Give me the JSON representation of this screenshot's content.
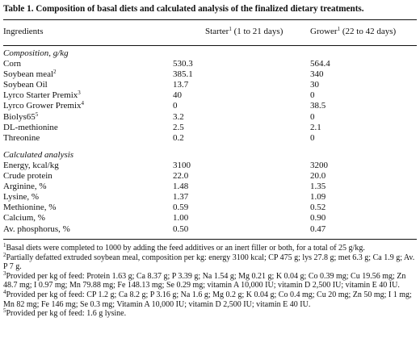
{
  "title": "Table 1. Composition of basal diets and calculated analysis of the finalized dietary treatments.",
  "header": {
    "ingredients": "Ingredients",
    "starter": "Starter",
    "starter_sup": "1",
    "starter_days": " (1 to 21 days)",
    "grower": "Grower",
    "grower_sup": "1",
    "grower_days": " (22 to 42 days)"
  },
  "composition": {
    "heading": "Composition, g/kg",
    "rows": [
      {
        "name": "Corn",
        "sup": "",
        "starter": "530.3",
        "grower": "564.4"
      },
      {
        "name": "Soybean meal",
        "sup": "2",
        "starter": "385.1",
        "grower": "340"
      },
      {
        "name": "Soybean Oil",
        "sup": "",
        "starter": "13.7",
        "grower": "30"
      },
      {
        "name": "Lyrco Starter Premix",
        "sup": "3",
        "starter": "40",
        "grower": "0"
      },
      {
        "name": "Lyrco Grower Premix",
        "sup": "4",
        "starter": "0",
        "grower": "38.5"
      },
      {
        "name": "Biolys65",
        "sup": "5",
        "starter": "3.2",
        "grower": "0"
      },
      {
        "name": "DL-methionine",
        "sup": "",
        "starter": "2.5",
        "grower": "2.1"
      },
      {
        "name": "Threonine",
        "sup": "",
        "starter": "0.2",
        "grower": "0"
      }
    ]
  },
  "calculated": {
    "heading": "Calculated analysis",
    "rows": [
      {
        "name": "Energy, kcal/kg",
        "starter": "3100",
        "grower": "3200"
      },
      {
        "name": "Crude protein",
        "starter": "22.0",
        "grower": "20.0"
      },
      {
        "name": "Arginine, %",
        "starter": "1.48",
        "grower": "1.35"
      },
      {
        "name": "Lysine, %",
        "starter": "1.37",
        "grower": "1.09"
      },
      {
        "name": "Methionine, %",
        "starter": "0.59",
        "grower": "0.52"
      },
      {
        "name": "Calcium, %",
        "starter": "1.00",
        "grower": "0.90"
      },
      {
        "name": "Av. phosphorus, %",
        "starter": "0.50",
        "grower": "0.47"
      }
    ]
  },
  "footnotes": [
    {
      "sup": "1",
      "text": "Basal diets were completed to 1000 by adding the feed additives or an inert filler or both, for a total of 25 g/kg."
    },
    {
      "sup": "2",
      "text": "Partially defatted extruded soybean meal, composition per kg: energy 3100 kcal; CP 475 g; lys 27.8 g; met 6.3 g; Ca 1.9 g; Av. P 7 g."
    },
    {
      "sup": "3",
      "text": "Provided per kg of feed: Protein 1.63 g; Ca 8.37 g; P 3.39 g; Na 1.54 g; Mg 0.21 g; K 0.04 g; Co 0.39 mg; Cu 19.56 mg; Zn 48.7 mg; I 0.97 mg; Mn 79.88 mg; Fe 148.13 mg; Se 0.29 mg; vitamin A 10,000 IU; vitamin D 2,500 IU; vitamin E 40 IU."
    },
    {
      "sup": "4",
      "text": "Provided per kg of feed: CP 1.2 g; Ca 8.2 g; P 3.16 g; Na 1.6 g; Mg 0.2 g; K 0.04 g; Co 0.4 mg; Cu 20 mg; Zn 50 mg; I 1 mg; Mn 82 mg; Fe 146 mg; Se 0.3 mg; Vitamin A 10,000 IU; vitamin D 2,500 IU; vitamin E 40 IU."
    },
    {
      "sup": "5",
      "text": "Provided per kg of feed: 1.6 g lysine."
    }
  ]
}
